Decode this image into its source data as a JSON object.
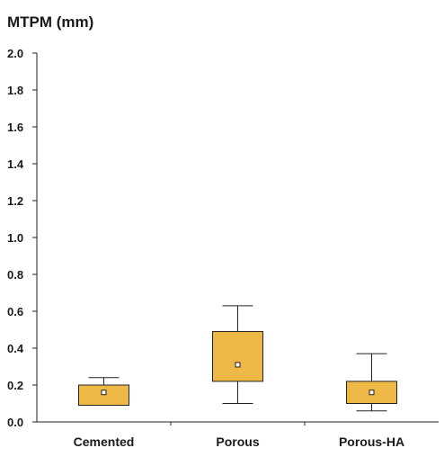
{
  "chart_data": {
    "type": "box",
    "ylabel": "MTPM (mm)",
    "ylim": [
      0,
      2.0
    ],
    "yticks": [
      "0.0",
      "0.2",
      "0.4",
      "0.6",
      "0.8",
      "1.0",
      "1.2",
      "1.4",
      "1.6",
      "1.8",
      "2.0"
    ],
    "categories": [
      "Cemented",
      "Porous",
      "Porous-HA"
    ],
    "boxes": [
      {
        "category": "Cemented",
        "whisker_low": 0.09,
        "q1": 0.09,
        "median": 0.16,
        "q3": 0.2,
        "whisker_high": 0.24
      },
      {
        "category": "Porous",
        "whisker_low": 0.1,
        "q1": 0.22,
        "median": 0.31,
        "q3": 0.49,
        "whisker_high": 0.63
      },
      {
        "category": "Porous-HA",
        "whisker_low": 0.06,
        "q1": 0.1,
        "median": 0.16,
        "q3": 0.22,
        "whisker_high": 0.37
      }
    ],
    "box_color": "#EDB845",
    "grid": false
  }
}
